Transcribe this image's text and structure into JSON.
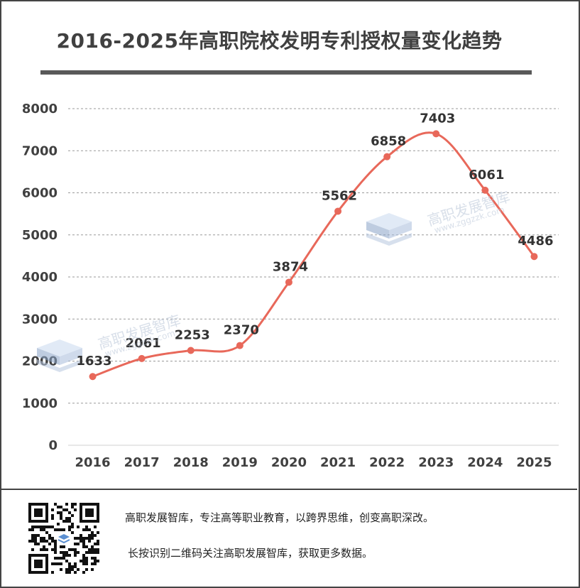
{
  "title": "2016-2025年高职院校发明专利授权量变化趋势",
  "chart_data": {
    "type": "line",
    "title": "2016-2025年高职院校发明专利授权量变化趋势",
    "categories": [
      "2016",
      "2017",
      "2018",
      "2019",
      "2020",
      "2021",
      "2022",
      "2023",
      "2024",
      "2025"
    ],
    "values": [
      1633,
      2061,
      2253,
      2370,
      3874,
      5562,
      6858,
      7403,
      6061,
      4486
    ],
    "ylim": [
      0,
      8000
    ],
    "yticks": [
      0,
      1000,
      2000,
      3000,
      4000,
      5000,
      6000,
      7000,
      8000
    ],
    "grid": true,
    "line_color": "#e8685a",
    "xlabel": "",
    "ylabel": ""
  },
  "watermark": {
    "name": "高职发展智库",
    "url": "www.zggzzk.com"
  },
  "footer": {
    "line1": "高职发展智库，专注高等职业教育，以跨界思维，创变高职深改。",
    "line2": "长按识别二维码关注高职发展智库，获取更多数据。"
  }
}
